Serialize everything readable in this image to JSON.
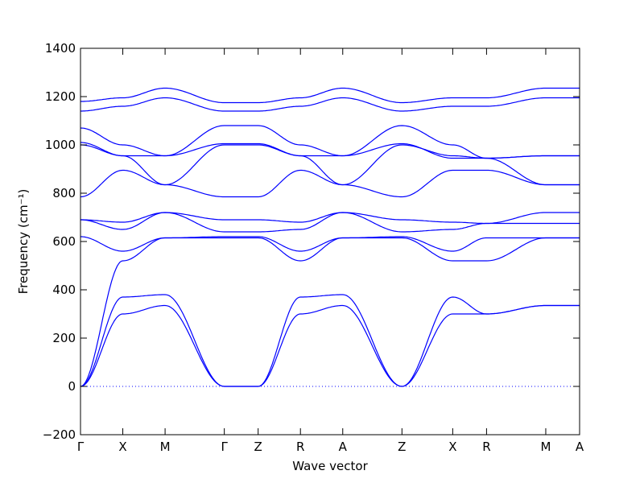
{
  "chart_data": {
    "type": "line",
    "xlabel": "Wave vector",
    "ylabel": "Frequency (cm⁻¹)",
    "ylim": [
      -200,
      1400
    ],
    "y_ticks": [
      -200,
      0,
      200,
      400,
      600,
      800,
      1000,
      1200,
      1400
    ],
    "k_points": [
      {
        "label": "Γ",
        "k": 0
      },
      {
        "label": "X",
        "k": 0.5
      },
      {
        "label": "M",
        "k": 1.0
      },
      {
        "label": "Γ",
        "k": 1.7
      },
      {
        "label": "Z",
        "k": 2.1
      },
      {
        "label": "R",
        "k": 2.6
      },
      {
        "label": "A",
        "k": 3.1
      },
      {
        "label": "Z",
        "k": 3.8
      },
      {
        "label": "X",
        "k": 4.4
      },
      {
        "label": "R",
        "k": 4.8
      },
      {
        "label": "M",
        "k": 5.5
      },
      {
        "label": "A",
        "k": 5.9
      }
    ],
    "zero_line": 0,
    "line_color": "#0000ff",
    "bands": [
      [
        0,
        300,
        335,
        0,
        0,
        300,
        335,
        0,
        300,
        300,
        335,
        335
      ],
      [
        0,
        370,
        380,
        0,
        0,
        370,
        380,
        0,
        370,
        300,
        335,
        335
      ],
      [
        0,
        520,
        615,
        615,
        615,
        520,
        615,
        615,
        520,
        520,
        615,
        615
      ],
      [
        620,
        560,
        615,
        620,
        620,
        560,
        615,
        620,
        560,
        615,
        615,
        615
      ],
      [
        690,
        650,
        720,
        640,
        640,
        650,
        720,
        640,
        650,
        675,
        675,
        675
      ],
      [
        690,
        680,
        720,
        690,
        690,
        680,
        720,
        690,
        680,
        675,
        720,
        720
      ],
      [
        785,
        895,
        835,
        785,
        785,
        895,
        835,
        785,
        895,
        895,
        835,
        835
      ],
      [
        1000,
        955,
        835,
        1000,
        1000,
        955,
        835,
        1000,
        955,
        945,
        835,
        835
      ],
      [
        1010,
        955,
        955,
        1005,
        1005,
        955,
        955,
        1005,
        945,
        945,
        955,
        955
      ],
      [
        1070,
        1000,
        955,
        1080,
        1080,
        1000,
        955,
        1080,
        1000,
        945,
        955,
        955
      ],
      [
        1140,
        1160,
        1195,
        1140,
        1140,
        1160,
        1195,
        1140,
        1160,
        1160,
        1195,
        1195
      ],
      [
        1180,
        1195,
        1235,
        1175,
        1175,
        1195,
        1235,
        1175,
        1195,
        1195,
        1235,
        1235
      ]
    ]
  }
}
